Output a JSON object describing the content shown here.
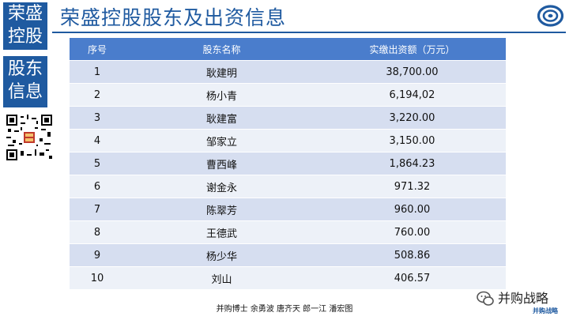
{
  "sidebar": {
    "box1_line1": "荣盛",
    "box1_line2": "控股",
    "box2_line1": "股东",
    "box2_line2": "信息"
  },
  "header": {
    "title": "荣盛控股股东及出资信息"
  },
  "table": {
    "columns": [
      "序号",
      "股东名称",
      "实缴出资额（万元）"
    ],
    "rows": [
      [
        "1",
        "耿建明",
        "38,700.00"
      ],
      [
        "2",
        "杨小青",
        "6,194,02"
      ],
      [
        "3",
        "耿建富",
        "3,220.00"
      ],
      [
        "4",
        "邹家立",
        "3,150.00"
      ],
      [
        "5",
        "曹西峰",
        "1,864.23"
      ],
      [
        "6",
        "谢金永",
        "971.32"
      ],
      [
        "7",
        "陈翠芳",
        "960.00"
      ],
      [
        "8",
        "王德武",
        "760.00"
      ],
      [
        "9",
        "杨少华",
        "508.86"
      ],
      [
        "10",
        "刘山",
        "406.57"
      ]
    ]
  },
  "footer": {
    "credits": "并购博士 余勇波 唐齐天 郎一江 潘宏图"
  },
  "watermark": {
    "text": "并购战略",
    "subtext": "并购战略"
  },
  "colors": {
    "brand_blue": "#1f5aa0",
    "header_blue": "#4a7dcc",
    "row_odd": "#d6def0",
    "row_even": "#edf1f8"
  }
}
